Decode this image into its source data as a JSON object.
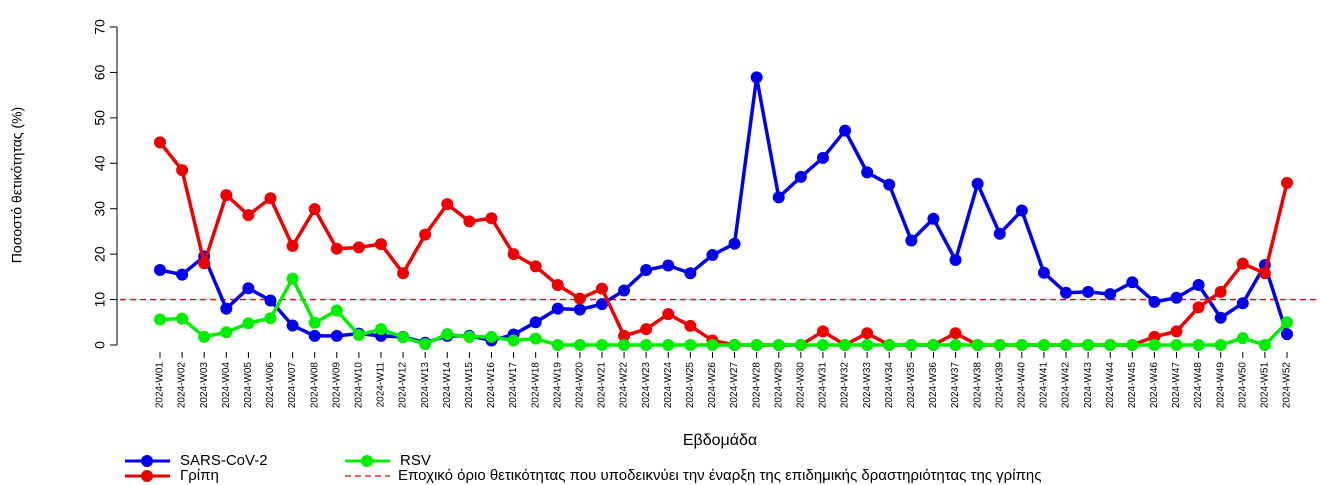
{
  "chart_data": {
    "type": "line",
    "x_label": "Εβδομάδα",
    "y_label": "Ποσοστό θετικότητας (%)",
    "categories": [
      "2024-W01",
      "2024-W02",
      "2024-W03",
      "2024-W04",
      "2024-W05",
      "2024-W06",
      "2024-W07",
      "2024-W08",
      "2024-W09",
      "2024-W10",
      "2024-W11",
      "2024-W12",
      "2024-W13",
      "2024-W14",
      "2024-W15",
      "2024-W16",
      "2024-W17",
      "2024-W18",
      "2024-W19",
      "2024-W20",
      "2024-W21",
      "2024-W22",
      "2024-W23",
      "2024-W24",
      "2024-W25",
      "2024-W26",
      "2024-W27",
      "2024-W28",
      "2024-W29",
      "2024-W30",
      "2024-W31",
      "2024-W32",
      "2024-W33",
      "2024-W34",
      "2024-W35",
      "2024-W36",
      "2024-W37",
      "2024-W38",
      "2024-W39",
      "2024-W40",
      "2024-W41",
      "2024-W42",
      "2024-W43",
      "2024-W44",
      "2024-W45",
      "2024-W46",
      "2024-W47",
      "2024-W48",
      "2024-W49",
      "2024-W50",
      "2024-W51",
      "2024-W52"
    ],
    "series": [
      {
        "name": "SARS-CoV-2",
        "color": "#0000ee",
        "values": [
          16.5,
          15.5,
          19.5,
          8,
          12.5,
          9.8,
          4.3,
          2,
          2,
          2.5,
          2,
          1.8,
          0.5,
          2,
          2,
          1,
          2.3,
          5,
          8,
          7.8,
          9,
          12,
          16.5,
          17.5,
          15.8,
          19.8,
          22.3,
          58.9,
          32.5,
          37,
          41.2,
          47.2,
          38,
          35.3,
          23,
          27.8,
          18.7,
          35.5,
          24.5,
          29.6,
          15.9,
          11.5,
          11.7,
          11.2,
          13.8,
          9.5,
          10.4,
          13.2,
          6,
          9.2,
          17.6,
          2.4
        ]
      },
      {
        "name": "Γρίπη",
        "color": "#ee0000",
        "values": [
          44.6,
          38.5,
          18,
          33,
          28.6,
          32.3,
          21.8,
          29.9,
          21.2,
          21.5,
          22.2,
          15.8,
          24.3,
          31,
          27.2,
          27.9,
          20,
          17.3,
          13.2,
          10.2,
          12.4,
          2,
          3.5,
          6.8,
          4.2,
          1,
          0,
          0,
          0,
          0,
          3,
          0,
          2.6,
          0,
          0,
          0,
          2.6,
          0,
          0,
          0,
          0,
          0,
          0,
          0,
          0,
          1.8,
          3,
          8.3,
          11.7,
          17.9,
          15.8,
          35.7
        ]
      },
      {
        "name": "RSV",
        "color": "#00ee00",
        "values": [
          5.6,
          5.8,
          1.8,
          2.8,
          4.8,
          5.9,
          14.6,
          4.9,
          7.6,
          2.2,
          3.5,
          1.7,
          0.2,
          2.4,
          1.8,
          1.8,
          1,
          1.4,
          0,
          0,
          0,
          0,
          0,
          0,
          0,
          0,
          0,
          0,
          0,
          0,
          0,
          0,
          0,
          0,
          0,
          0,
          0,
          0,
          0,
          0,
          0,
          0,
          0,
          0,
          0,
          0,
          0,
          0,
          0,
          1.5,
          0,
          5
        ]
      }
    ],
    "threshold": 10,
    "threshold_color": "#ee0000",
    "threshold_label": "Εποχικό όριο θετικότητας που υποδεικνύει την έναρξη της επιδημικής δραστηριότητας της γρίπης",
    "ylim": [
      0,
      70
    ],
    "yticks": [
      0,
      10,
      20,
      30,
      40,
      50,
      60,
      70
    ],
    "grid": false
  }
}
